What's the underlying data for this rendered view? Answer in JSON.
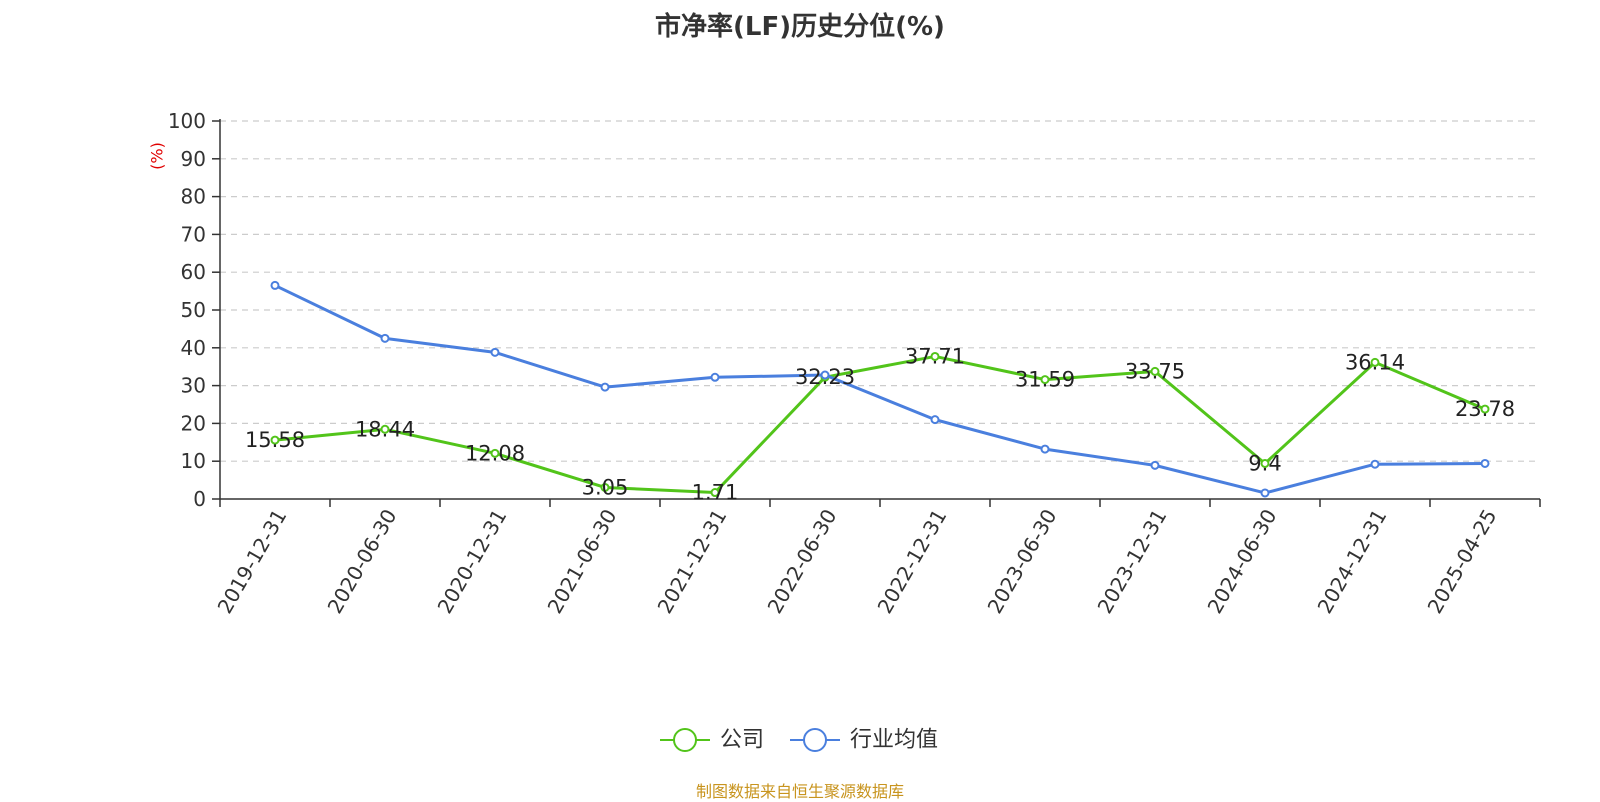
{
  "chart_data": {
    "type": "line",
    "title": "市净率(LF)历史分位(%)",
    "ylabel": "(%)",
    "ylim": [
      0,
      100
    ],
    "yticks": [
      0,
      10,
      20,
      30,
      40,
      50,
      60,
      70,
      80,
      90,
      100
    ],
    "categories": [
      "2019-12-31",
      "2020-06-30",
      "2020-12-31",
      "2021-06-30",
      "2021-12-31",
      "2022-06-30",
      "2022-12-31",
      "2023-06-30",
      "2023-12-31",
      "2024-06-30",
      "2024-12-31",
      "2025-04-25"
    ],
    "grid": true,
    "legend_position": "bottom",
    "series": [
      {
        "name": "公司",
        "color": "#52c41a",
        "values": [
          15.58,
          18.44,
          12.08,
          3.05,
          1.71,
          32.23,
          37.71,
          31.59,
          33.75,
          9.4,
          36.14,
          23.78
        ],
        "labels": [
          "15.58",
          "18.44",
          "12.08",
          "3.05",
          "1.71",
          "32.23",
          "37.71",
          "31.59",
          "33.75",
          "9.4",
          "36.14",
          "23.78"
        ]
      },
      {
        "name": "行业均值",
        "color": "#4a7fde",
        "values": [
          56.5,
          42.5,
          38.8,
          29.6,
          32.2,
          32.8,
          21.0,
          13.2,
          8.9,
          1.6,
          9.2,
          9.4
        ]
      }
    ]
  },
  "source": "制图数据来自恒生聚源数据库"
}
